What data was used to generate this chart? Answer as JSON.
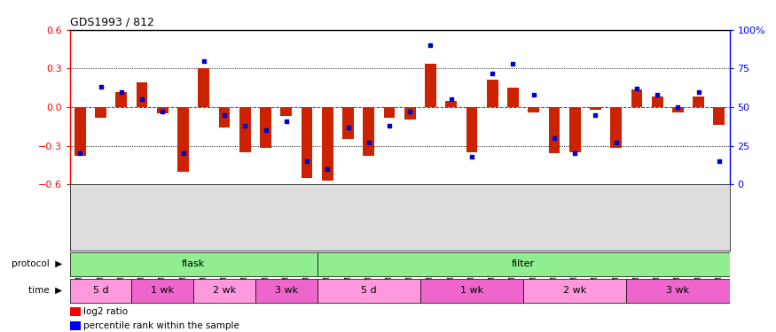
{
  "title": "GDS1993 / 812",
  "samples": [
    "GSM22075",
    "GSM22076",
    "GSM22077",
    "GSM22078",
    "GSM22079",
    "GSM22080",
    "GSM22081",
    "GSM22082",
    "GSM22083",
    "GSM22084",
    "GSM22085",
    "GSM22086",
    "GSM22087",
    "GSM22088",
    "GSM22089",
    "GSM22109",
    "GSM22110",
    "GSM22090",
    "GSM22091",
    "GSM22092",
    "GSM22111",
    "GSM22112",
    "GSM22103",
    "GSM22104",
    "GSM22105",
    "GSM22113",
    "GSM22114",
    "GSM22106",
    "GSM22107",
    "GSM22108",
    "GSM22115",
    "GSM22116"
  ],
  "log2_ratio": [
    -0.38,
    -0.08,
    0.12,
    0.19,
    -0.05,
    -0.5,
    0.3,
    -0.16,
    -0.35,
    -0.32,
    -0.07,
    -0.55,
    -0.57,
    -0.25,
    -0.38,
    -0.08,
    -0.1,
    0.34,
    0.05,
    -0.35,
    0.21,
    0.15,
    -0.04,
    -0.36,
    -0.35,
    -0.02,
    -0.32,
    0.14,
    0.08,
    -0.04,
    0.08,
    -0.14
  ],
  "percentile": [
    20,
    63,
    60,
    55,
    47,
    20,
    80,
    45,
    38,
    35,
    41,
    15,
    10,
    37,
    27,
    38,
    47,
    90,
    55,
    18,
    72,
    78,
    58,
    30,
    20,
    45,
    27,
    62,
    58,
    50,
    60,
    15
  ],
  "protocol_groups": [
    {
      "label": "flask",
      "start": 0,
      "end": 12
    },
    {
      "label": "filter",
      "start": 12,
      "end": 32
    }
  ],
  "time_groups": [
    {
      "label": "5 d",
      "start": 0,
      "end": 3,
      "dark": false
    },
    {
      "label": "1 wk",
      "start": 3,
      "end": 6,
      "dark": true
    },
    {
      "label": "2 wk",
      "start": 6,
      "end": 9,
      "dark": false
    },
    {
      "label": "3 wk",
      "start": 9,
      "end": 12,
      "dark": true
    },
    {
      "label": "5 d",
      "start": 12,
      "end": 17,
      "dark": false
    },
    {
      "label": "1 wk",
      "start": 17,
      "end": 22,
      "dark": true
    },
    {
      "label": "2 wk",
      "start": 22,
      "end": 27,
      "dark": false
    },
    {
      "label": "3 wk",
      "start": 27,
      "end": 32,
      "dark": true
    }
  ],
  "protocol_color": "#90EE90",
  "time_color_light": "#FF99DD",
  "time_color_dark": "#EE66CC",
  "bar_color": "#CC2200",
  "dot_color": "#0000CC",
  "sample_bg_color": "#DDDDDD",
  "ylim_left": [
    -0.6,
    0.6
  ],
  "ylim_right": [
    0,
    100
  ],
  "yticks_left": [
    -0.6,
    -0.3,
    0.0,
    0.3,
    0.6
  ],
  "yticks_right": [
    0,
    25,
    50,
    75,
    100
  ],
  "ytick_labels_right": [
    "0",
    "25",
    "50",
    "75",
    "100%"
  ],
  "hlines_dotted": [
    -0.3,
    0.3
  ],
  "background_color": "#ffffff"
}
